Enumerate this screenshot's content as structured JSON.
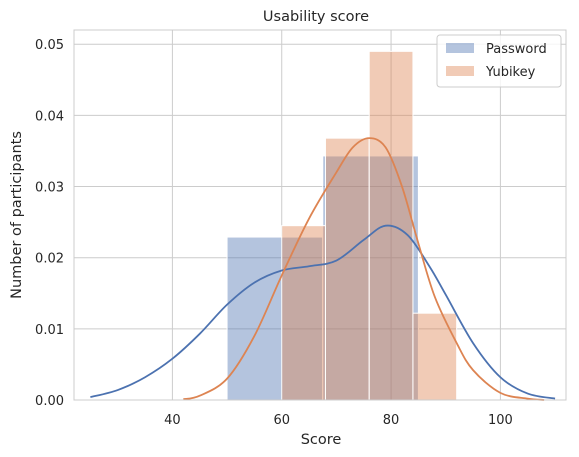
{
  "chart_data": {
    "type": "histogram-kde",
    "title": "Usability score",
    "xlabel": "Score",
    "ylabel": "Number of participants",
    "xlim": [
      22,
      112
    ],
    "ylim": [
      0,
      0.052
    ],
    "x_ticks": [
      40,
      60,
      80,
      100
    ],
    "x_tick_labels": [
      "40",
      "60",
      "80",
      "100"
    ],
    "y_ticks": [
      0,
      0.01,
      0.02,
      0.03,
      0.04,
      0.05
    ],
    "y_tick_labels": [
      "0.00",
      "0.01",
      "0.02",
      "0.03",
      "0.04",
      "0.05"
    ],
    "grid": true,
    "legend_position": "top-right",
    "series": [
      {
        "name": "Password",
        "color": "#4c72b0",
        "bins": [
          {
            "x0": 50.0,
            "x1": 67.5,
            "density": 0.0229
          },
          {
            "x0": 67.5,
            "x1": 85.0,
            "density": 0.0343
          }
        ],
        "kde": [
          [
            25,
            0.0004
          ],
          [
            30,
            0.0014
          ],
          [
            35,
            0.0032
          ],
          [
            40,
            0.0058
          ],
          [
            45,
            0.0093
          ],
          [
            50,
            0.0134
          ],
          [
            55,
            0.0165
          ],
          [
            60,
            0.0182
          ],
          [
            65,
            0.0188
          ],
          [
            70,
            0.0196
          ],
          [
            75,
            0.0225
          ],
          [
            79,
            0.0245
          ],
          [
            83,
            0.0232
          ],
          [
            87,
            0.0188
          ],
          [
            90,
            0.0148
          ],
          [
            95,
            0.008
          ],
          [
            100,
            0.0032
          ],
          [
            105,
            0.0009
          ],
          [
            110,
            0.0002
          ]
        ]
      },
      {
        "name": "Yubikey",
        "color": "#dd8452",
        "bins": [
          {
            "x0": 60.0,
            "x1": 68.0,
            "density": 0.0245
          },
          {
            "x0": 68.0,
            "x1": 76.0,
            "density": 0.0368
          },
          {
            "x0": 76.0,
            "x1": 84.0,
            "density": 0.049
          },
          {
            "x0": 84.0,
            "x1": 92.0,
            "density": 0.0122
          }
        ],
        "kde": [
          [
            42,
            0.0001
          ],
          [
            45,
            0.0006
          ],
          [
            50,
            0.003
          ],
          [
            55,
            0.009
          ],
          [
            60,
            0.0175
          ],
          [
            65,
            0.0255
          ],
          [
            70,
            0.032
          ],
          [
            73,
            0.0355
          ],
          [
            76,
            0.0368
          ],
          [
            79,
            0.0355
          ],
          [
            82,
            0.03
          ],
          [
            85,
            0.022
          ],
          [
            88,
            0.0145
          ],
          [
            92,
            0.008
          ],
          [
            95,
            0.0042
          ],
          [
            100,
            0.001
          ],
          [
            105,
            0.0002
          ],
          [
            108,
            0.0
          ]
        ]
      }
    ]
  }
}
